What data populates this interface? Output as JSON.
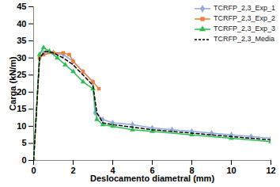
{
  "chart_data": {
    "type": "line",
    "xlabel": "Deslocamento diametral (mm)",
    "ylabel": "Carga (kN/m)",
    "xlim": [
      0,
      12
    ],
    "xticks": [
      0,
      2,
      4,
      6,
      8,
      10,
      12
    ],
    "ylim": [
      0,
      45
    ],
    "yticks": [
      0,
      5,
      10,
      15,
      20,
      25,
      30,
      35,
      40,
      45
    ],
    "grid": false,
    "legend": "upper right",
    "series": [
      {
        "name": "TCRFP_2,3_Exp_1",
        "color": "#8EA9DB",
        "marker": "diamond",
        "line_style": "solid",
        "x": [
          0,
          0.3,
          0.5,
          1.0,
          1.5,
          2.0,
          2.5,
          3.0,
          3.1,
          3.5,
          4,
          5,
          6,
          7,
          8,
          9,
          10,
          11,
          12
        ],
        "values": [
          0,
          30,
          31.5,
          31.5,
          31,
          29,
          26,
          23,
          14,
          12,
          11,
          10.5,
          9.5,
          9,
          8.5,
          8,
          7.5,
          7,
          6.5
        ]
      },
      {
        "name": "TCRFP_2,3_Exp_2",
        "color": "#F07E3A",
        "marker": "square",
        "line_style": "solid",
        "x": [
          0,
          0.3,
          0.5,
          1.0,
          1.5,
          1.8,
          2.0,
          2.5,
          3.0,
          3.3
        ],
        "values": [
          0,
          30,
          31,
          31.5,
          31.5,
          31,
          29,
          26,
          23,
          21
        ]
      },
      {
        "name": "TCRFP_2,3_Exp_3",
        "color": "#2DBE50",
        "marker": "triangle",
        "line_style": "solid",
        "x": [
          0,
          0.3,
          0.5,
          0.8,
          1.2,
          1.6,
          2.0,
          2.5,
          3.0,
          3.2,
          3.5,
          4,
          5,
          6,
          8,
          10,
          12
        ],
        "values": [
          0,
          31,
          33,
          32,
          30,
          28,
          26,
          23,
          21,
          12,
          10.5,
          10,
          9,
          8.5,
          7.5,
          6.5,
          5.5
        ]
      },
      {
        "name": "TCRFP_2,3_Media",
        "color": "#000000",
        "marker": "none",
        "line_style": "dashed",
        "x": [
          0,
          0.3,
          0.6,
          1.0,
          1.5,
          2.0,
          2.5,
          3.0,
          3.2,
          3.5,
          4,
          6,
          8,
          10,
          12
        ],
        "values": [
          0,
          30,
          32,
          31.5,
          30,
          28,
          25,
          22,
          14,
          11,
          10.5,
          9,
          8,
          7,
          6
        ]
      }
    ]
  }
}
